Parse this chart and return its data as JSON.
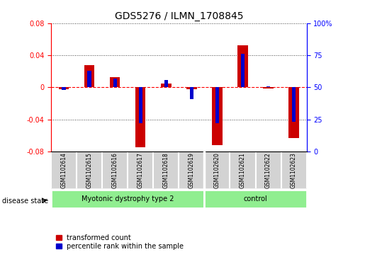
{
  "title": "GDS5276 / ILMN_1708845",
  "samples": [
    "GSM1102614",
    "GSM1102615",
    "GSM1102616",
    "GSM1102617",
    "GSM1102618",
    "GSM1102619",
    "GSM1102620",
    "GSM1102621",
    "GSM1102622",
    "GSM1102623"
  ],
  "red_values": [
    -0.002,
    0.028,
    0.013,
    -0.075,
    0.005,
    -0.002,
    -0.072,
    0.052,
    -0.001,
    -0.063
  ],
  "blue_values_pct": [
    48,
    63,
    57,
    22,
    56,
    41,
    22,
    76,
    51,
    23
  ],
  "groups": [
    {
      "label": "Myotonic dystrophy type 2",
      "start": 0,
      "end": 6,
      "color": "#90EE90"
    },
    {
      "label": "control",
      "start": 6,
      "end": 10,
      "color": "#90EE90"
    }
  ],
  "ylim": [
    -0.08,
    0.08
  ],
  "yticks_left": [
    -0.08,
    -0.04,
    0.0,
    0.04,
    0.08
  ],
  "yticks_right": [
    0,
    25,
    50,
    75,
    100
  ],
  "red_color": "#CC0000",
  "blue_color": "#0000CC",
  "bar_width": 0.4,
  "blue_bar_width": 0.15,
  "legend_red": "transformed count",
  "legend_blue": "percentile rank within the sample",
  "disease_state_label": "disease state",
  "group_separator": 5.5
}
